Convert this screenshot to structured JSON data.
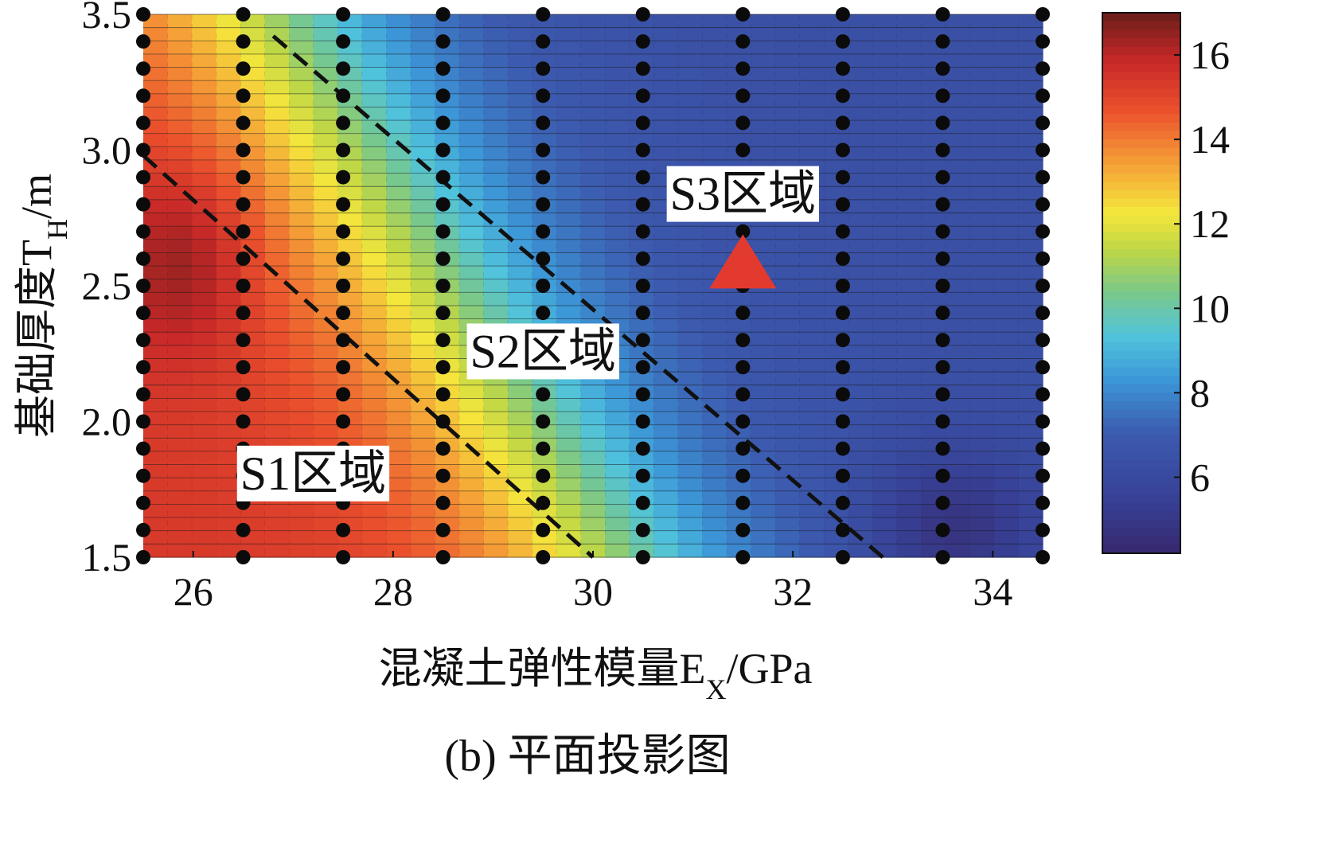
{
  "chart_data": {
    "type": "heatmap",
    "title": "",
    "caption": "(b) 平面投影图",
    "xlabel": {
      "main": "混凝土弹性模量E",
      "sub": "X",
      "unit": "/GPa"
    },
    "ylabel": {
      "main": "基础厚度T",
      "sub": "H",
      "unit": "/m"
    },
    "xlim": [
      25.5,
      34.5
    ],
    "ylim": [
      1.5,
      3.5
    ],
    "x_ticks": [
      26,
      28,
      30,
      32,
      34
    ],
    "x_tick_labels": [
      "26",
      "28",
      "30",
      "32",
      "34"
    ],
    "y_ticks": [
      1.5,
      2.0,
      2.5,
      3.0,
      3.5
    ],
    "y_tick_labels": [
      "1.5",
      "2.0",
      "2.5",
      "3.0",
      "3.5"
    ],
    "colorbar": {
      "min": 4.2,
      "max": 17,
      "ticks": [
        6,
        8,
        10,
        12,
        14,
        16
      ],
      "tick_labels": [
        "6",
        "8",
        "10",
        "12",
        "14",
        "16"
      ],
      "colormap": "jet"
    },
    "grid_resolution": {
      "x_cells": 37,
      "y_cells": 41
    },
    "sample_columns_x": [
      25.5,
      26.5,
      27.5,
      28.5,
      29.5,
      30.5,
      31.5,
      32.5,
      33.5,
      34.5
    ],
    "sample_rows_y": [
      1.5,
      1.6,
      1.7,
      1.8,
      1.9,
      2.0,
      2.1,
      2.2,
      2.3,
      2.4,
      2.5,
      2.6,
      2.7,
      2.8,
      2.9,
      3.0,
      3.1,
      3.2,
      3.3,
      3.4,
      3.5
    ],
    "surface_model": {
      "band_center_x_at_y1.5": 30.2,
      "band_center_slope": -1.7,
      "band_width": 0.85,
      "high_value": 15.4,
      "low_value": 6.4,
      "peak_bump": {
        "x": 25.9,
        "y": 2.6,
        "value": 1.4
      },
      "low_bump": {
        "x": 33.6,
        "y": 1.6,
        "value": -1.7
      }
    },
    "regions": [
      {
        "label": "S1区域",
        "x": 27.2,
        "y": 1.79
      },
      {
        "label": "S2区域",
        "x": 29.5,
        "y": 2.24
      },
      {
        "label": "S3区域",
        "x": 31.5,
        "y": 2.82
      }
    ],
    "dividers": [
      {
        "from": [
          25.5,
          2.98
        ],
        "to": [
          30.0,
          1.5
        ]
      },
      {
        "from": [
          26.8,
          3.42
        ],
        "to": [
          32.9,
          1.5
        ]
      }
    ],
    "marker": {
      "shape": "triangle",
      "color": "#e33a30",
      "x": 31.5,
      "y": 2.49
    }
  }
}
